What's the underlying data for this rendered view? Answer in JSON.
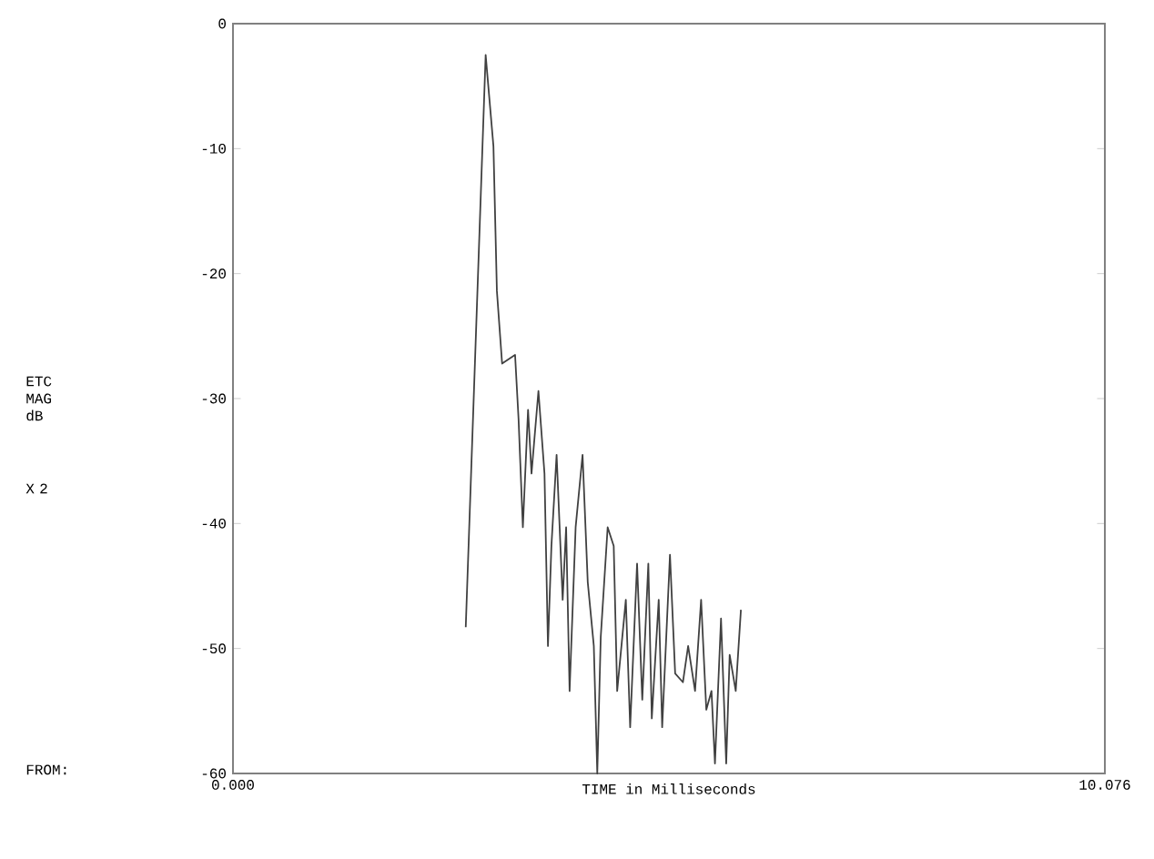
{
  "chart_data": {
    "type": "line",
    "xlabel": "TIME in Milliseconds",
    "annotations": [
      "ETC MAG dB",
      "X 2",
      "FROM:"
    ],
    "xlim": [
      0,
      10.076
    ],
    "ylim": [
      -60,
      0
    ],
    "xticks": [
      {
        "value": 0,
        "label": "0.000"
      },
      10.076
    ],
    "yticks": [
      -60,
      -50,
      -40,
      -30,
      -20,
      -10,
      0
    ],
    "grid": false,
    "marker": "none",
    "line_style": "solid",
    "series": [
      {
        "color": "#404040",
        "x": [
          2.69,
          2.92,
          3.01,
          3.05,
          3.11,
          3.26,
          3.3,
          3.35,
          3.41,
          3.45,
          3.53,
          3.6,
          3.64,
          3.68,
          3.74,
          3.81,
          3.85,
          3.89,
          3.96,
          4.04,
          4.1,
          4.17,
          4.21,
          4.25,
          4.33,
          4.4,
          4.44,
          4.54,
          4.59,
          4.67,
          4.73,
          4.8,
          4.84,
          4.92,
          4.96,
          5.05,
          5.11,
          5.2,
          5.26,
          5.34,
          5.41,
          5.47,
          5.53,
          5.57,
          5.64,
          5.7,
          5.74,
          5.81,
          5.87
        ],
        "values": [
          -48.3,
          -2.5,
          -9.8,
          -21.4,
          -27.2,
          -26.5,
          -31.6,
          -40.3,
          -30.9,
          -36.0,
          -29.4,
          -36.0,
          -49.8,
          -41.8,
          -34.5,
          -46.1,
          -40.3,
          -53.4,
          -40.3,
          -34.5,
          -44.7,
          -49.8,
          -60,
          -49.1,
          -40.3,
          -41.8,
          -53.4,
          -46.1,
          -56.3,
          -43.2,
          -54.1,
          -43.2,
          -55.6,
          -46.1,
          -56.3,
          -42.5,
          -52.0,
          -52.7,
          -49.8,
          -53.4,
          -46.1,
          -54.9,
          -53.4,
          -59.2,
          -47.6,
          -59.2,
          -50.5,
          -53.4,
          -46.9
        ]
      }
    ]
  }
}
